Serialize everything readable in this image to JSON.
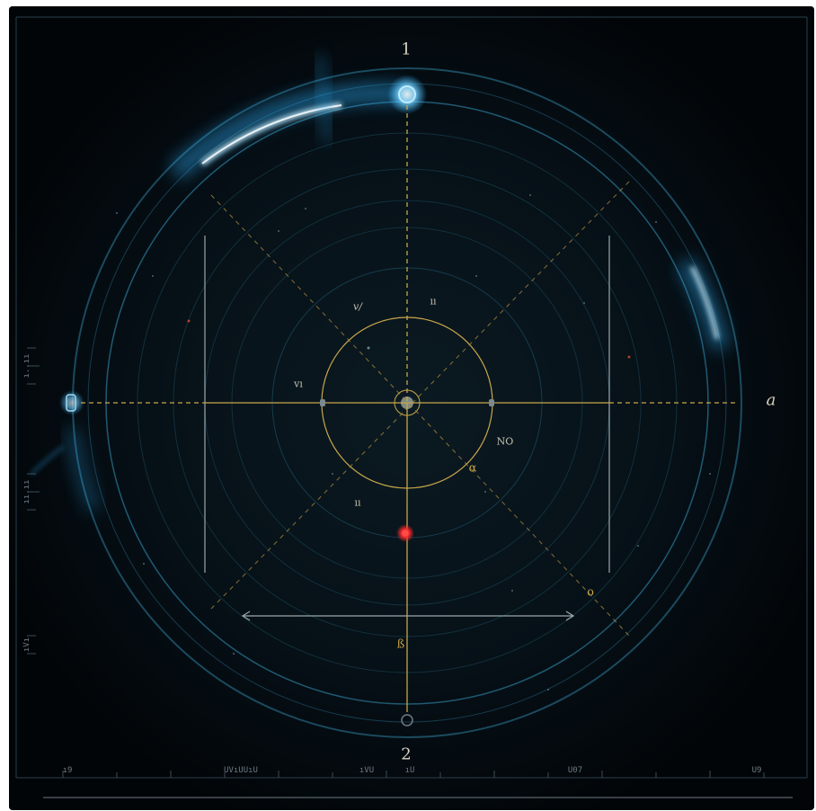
{
  "labels": {
    "top": "1",
    "bottom": "2",
    "right": "a",
    "upper_left_inner": "v/",
    "upper_right_inner": "ıı",
    "left_inner": "vı",
    "lower_left_inner": "ıı",
    "right_inner": "NO",
    "alpha": "α",
    "lower_right": "o",
    "below_arrow": "ß"
  },
  "bottom_scale": {
    "left": "ı9",
    "center_left": "UVıUUıU",
    "center": "ıVU",
    "center_mid": "ıU",
    "center_right": "U07",
    "right": "U9"
  },
  "left_scale": {
    "upper": "ı..ıı",
    "lower": "ıı.ıı",
    "bottom": "ıVı"
  },
  "colors": {
    "background": "#03080d",
    "glow": "#2fb4ff",
    "crosshair": "#c9a64a",
    "ring": "#1f5a72",
    "marker_red": "#ff2a2a"
  }
}
